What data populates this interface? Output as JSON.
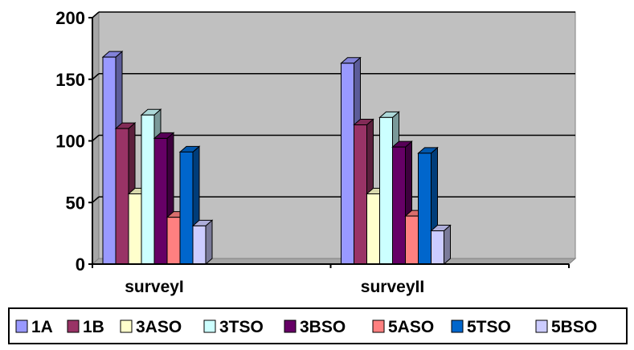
{
  "chart_data": {
    "type": "bar",
    "view": "3d-clustered-column",
    "categories": [
      "surveyI",
      "surveyII"
    ],
    "series": [
      {
        "name": "1A",
        "color": "#9999FF",
        "values": [
          168,
          163
        ]
      },
      {
        "name": "1B",
        "color": "#993366",
        "values": [
          110,
          113
        ]
      },
      {
        "name": "3ASO",
        "color": "#FFFFCC",
        "values": [
          57,
          57
        ]
      },
      {
        "name": "3TSO",
        "color": "#CCFFFF",
        "values": [
          121,
          119
        ]
      },
      {
        "name": "3BSO",
        "color": "#660066",
        "values": [
          102,
          95
        ]
      },
      {
        "name": "5ASO",
        "color": "#FF8080",
        "values": [
          38,
          39
        ]
      },
      {
        "name": "5TSO",
        "color": "#0066CC",
        "values": [
          91,
          90
        ]
      },
      {
        "name": "5BSO",
        "color": "#CCCCFF",
        "values": [
          31,
          27
        ]
      }
    ],
    "ylim": [
      0,
      200
    ],
    "yticks": [
      "0",
      "50",
      "100",
      "150",
      "200"
    ],
    "title": "",
    "xlabel": "",
    "ylabel": "",
    "grid": true,
    "legend_position": "bottom",
    "plot_background": "#C0C0C0"
  }
}
